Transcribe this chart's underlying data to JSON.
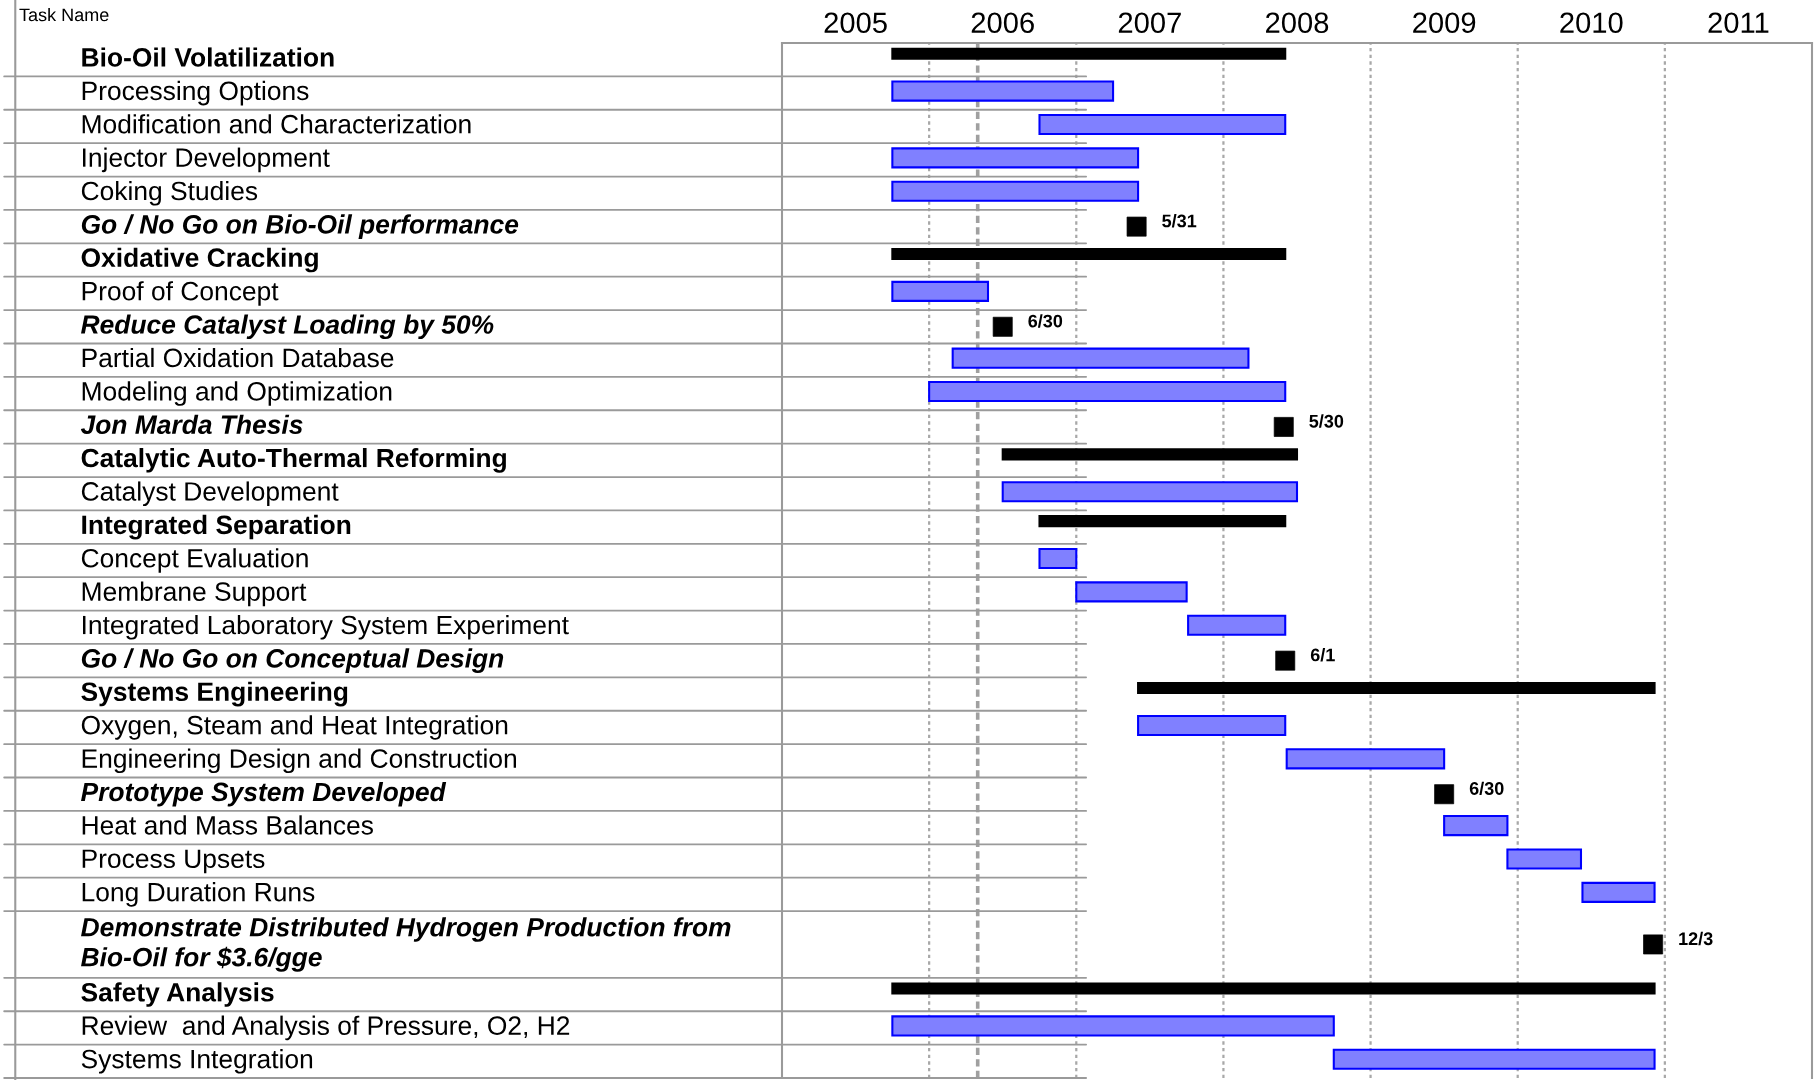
{
  "chart_data": {
    "type": "bar",
    "orientation": "horizontal",
    "ylabel": "Task Name",
    "categories": [
      "Bio-Oil Volatilization",
      "Processing Options",
      "Modification and Characterization",
      "Injector Development",
      "Coking Studies",
      "Go / No Go on Bio-Oil performance",
      "Oxidative Cracking",
      "Proof of Concept",
      "Reduce Catalyst Loading by 50%",
      "Partial Oxidation Database",
      "Modeling and Optimization",
      "Jon Marda Thesis",
      "Catalytic Auto-Thermal Reforming",
      "Catalyst Development",
      "Integrated Separation",
      "Concept Evaluation",
      "Membrane Support",
      "Integrated Laboratory System Experiment",
      "Go / No Go on Conceptual Design",
      "Systems Engineering",
      "Oxygen, Steam and Heat Integration",
      "Engineering Design and Construction",
      "Prototype System Developed",
      "Heat and Mass Balances",
      "Process Upsets",
      "Long Duration Runs",
      "Demonstrate Distributed Hydrogen Production from\nBio-Oil for $3.6/gge",
      "Safety Analysis",
      "Review  and Analysis of Pressure, O2, H2",
      "Systems Integration"
    ],
    "series": [
      {
        "color": "#000000",
        "values": [
          2.67,
          null,
          null,
          null,
          null,
          null,
          2.67,
          null,
          null,
          null,
          null,
          null,
          2.0,
          null,
          1.67,
          null,
          null,
          null,
          null,
          3.51,
          null,
          null,
          null,
          null,
          null,
          null,
          null,
          5.18,
          null,
          null
        ],
        "base": [
          2005.75,
          null,
          null,
          null,
          null,
          null,
          2005.75,
          null,
          null,
          null,
          null,
          null,
          2006.5,
          null,
          2006.75,
          null,
          null,
          null,
          null,
          2007.42,
          null,
          null,
          null,
          null,
          null,
          null,
          null,
          2005.75,
          null,
          null
        ]
      },
      {
        "color": "#8080ff",
        "values": [
          null,
          1.5,
          1.67,
          1.67,
          1.67,
          null,
          null,
          0.65,
          null,
          2.01,
          2.42,
          null,
          null,
          2.0,
          null,
          0.25,
          0.75,
          0.66,
          null,
          null,
          1.0,
          1.07,
          null,
          0.43,
          0.5,
          0.49,
          null,
          null,
          3.0,
          2.18
        ],
        "base": [
          null,
          2005.75,
          2006.75,
          2005.75,
          2005.75,
          null,
          null,
          2005.75,
          null,
          2006.16,
          2006.0,
          null,
          null,
          2006.5,
          null,
          2006.75,
          2007.0,
          2007.76,
          null,
          null,
          2007.42,
          2008.43,
          null,
          2009.5,
          2009.93,
          2010.44,
          null,
          null,
          2005.75,
          2008.75
        ]
      },
      {
        "type": "scatter",
        "marker": "square",
        "color": "#000000",
        "values": [
          null,
          null,
          null,
          null,
          null,
          2007.41,
          null,
          null,
          2006.5,
          null,
          null,
          2008.41,
          null,
          null,
          null,
          null,
          null,
          null,
          2008.42,
          null,
          null,
          null,
          2009.5,
          null,
          null,
          null,
          2010.92,
          null,
          null,
          null
        ],
        "value_labels": [
          null,
          null,
          null,
          null,
          null,
          "5/31",
          null,
          null,
          "6/30",
          null,
          null,
          "5/30",
          null,
          null,
          null,
          null,
          null,
          null,
          "6/1",
          null,
          null,
          null,
          "6/30",
          null,
          null,
          null,
          "12/3",
          null,
          null,
          null
        ]
      }
    ],
    "xlim": [
      2005,
      2012
    ],
    "xticks": [
      {
        "value": 2005.5,
        "label": "2005"
      },
      {
        "value": 2006.5,
        "label": "2006"
      },
      {
        "value": 2007.5,
        "label": "2007"
      },
      {
        "value": 2008.5,
        "label": "2008"
      },
      {
        "value": 2009.5,
        "label": "2009"
      },
      {
        "value": 2010.5,
        "label": "2010"
      },
      {
        "value": 2011.5,
        "label": "2011"
      }
    ],
    "ref_lines": [
      {
        "axis": "x",
        "value": 2006,
        "color": "#a8a8a8",
        "line_style": "dotted"
      },
      {
        "axis": "x",
        "value": 2007,
        "color": "#a8a8a8",
        "line_style": "dotted"
      },
      {
        "axis": "x",
        "value": 2008,
        "color": "#a8a8a8",
        "line_style": "dotted"
      },
      {
        "axis": "x",
        "value": 2009,
        "color": "#a8a8a8",
        "line_style": "dotted"
      },
      {
        "axis": "x",
        "value": 2010,
        "color": "#a8a8a8",
        "line_style": "dotted"
      },
      {
        "axis": "x",
        "value": 2011,
        "color": "#a8a8a8",
        "line_style": "dotted"
      },
      {
        "axis": "x",
        "value": 2006.33,
        "color": "#a0a0a0",
        "line_style": "dashed"
      }
    ]
  }
}
